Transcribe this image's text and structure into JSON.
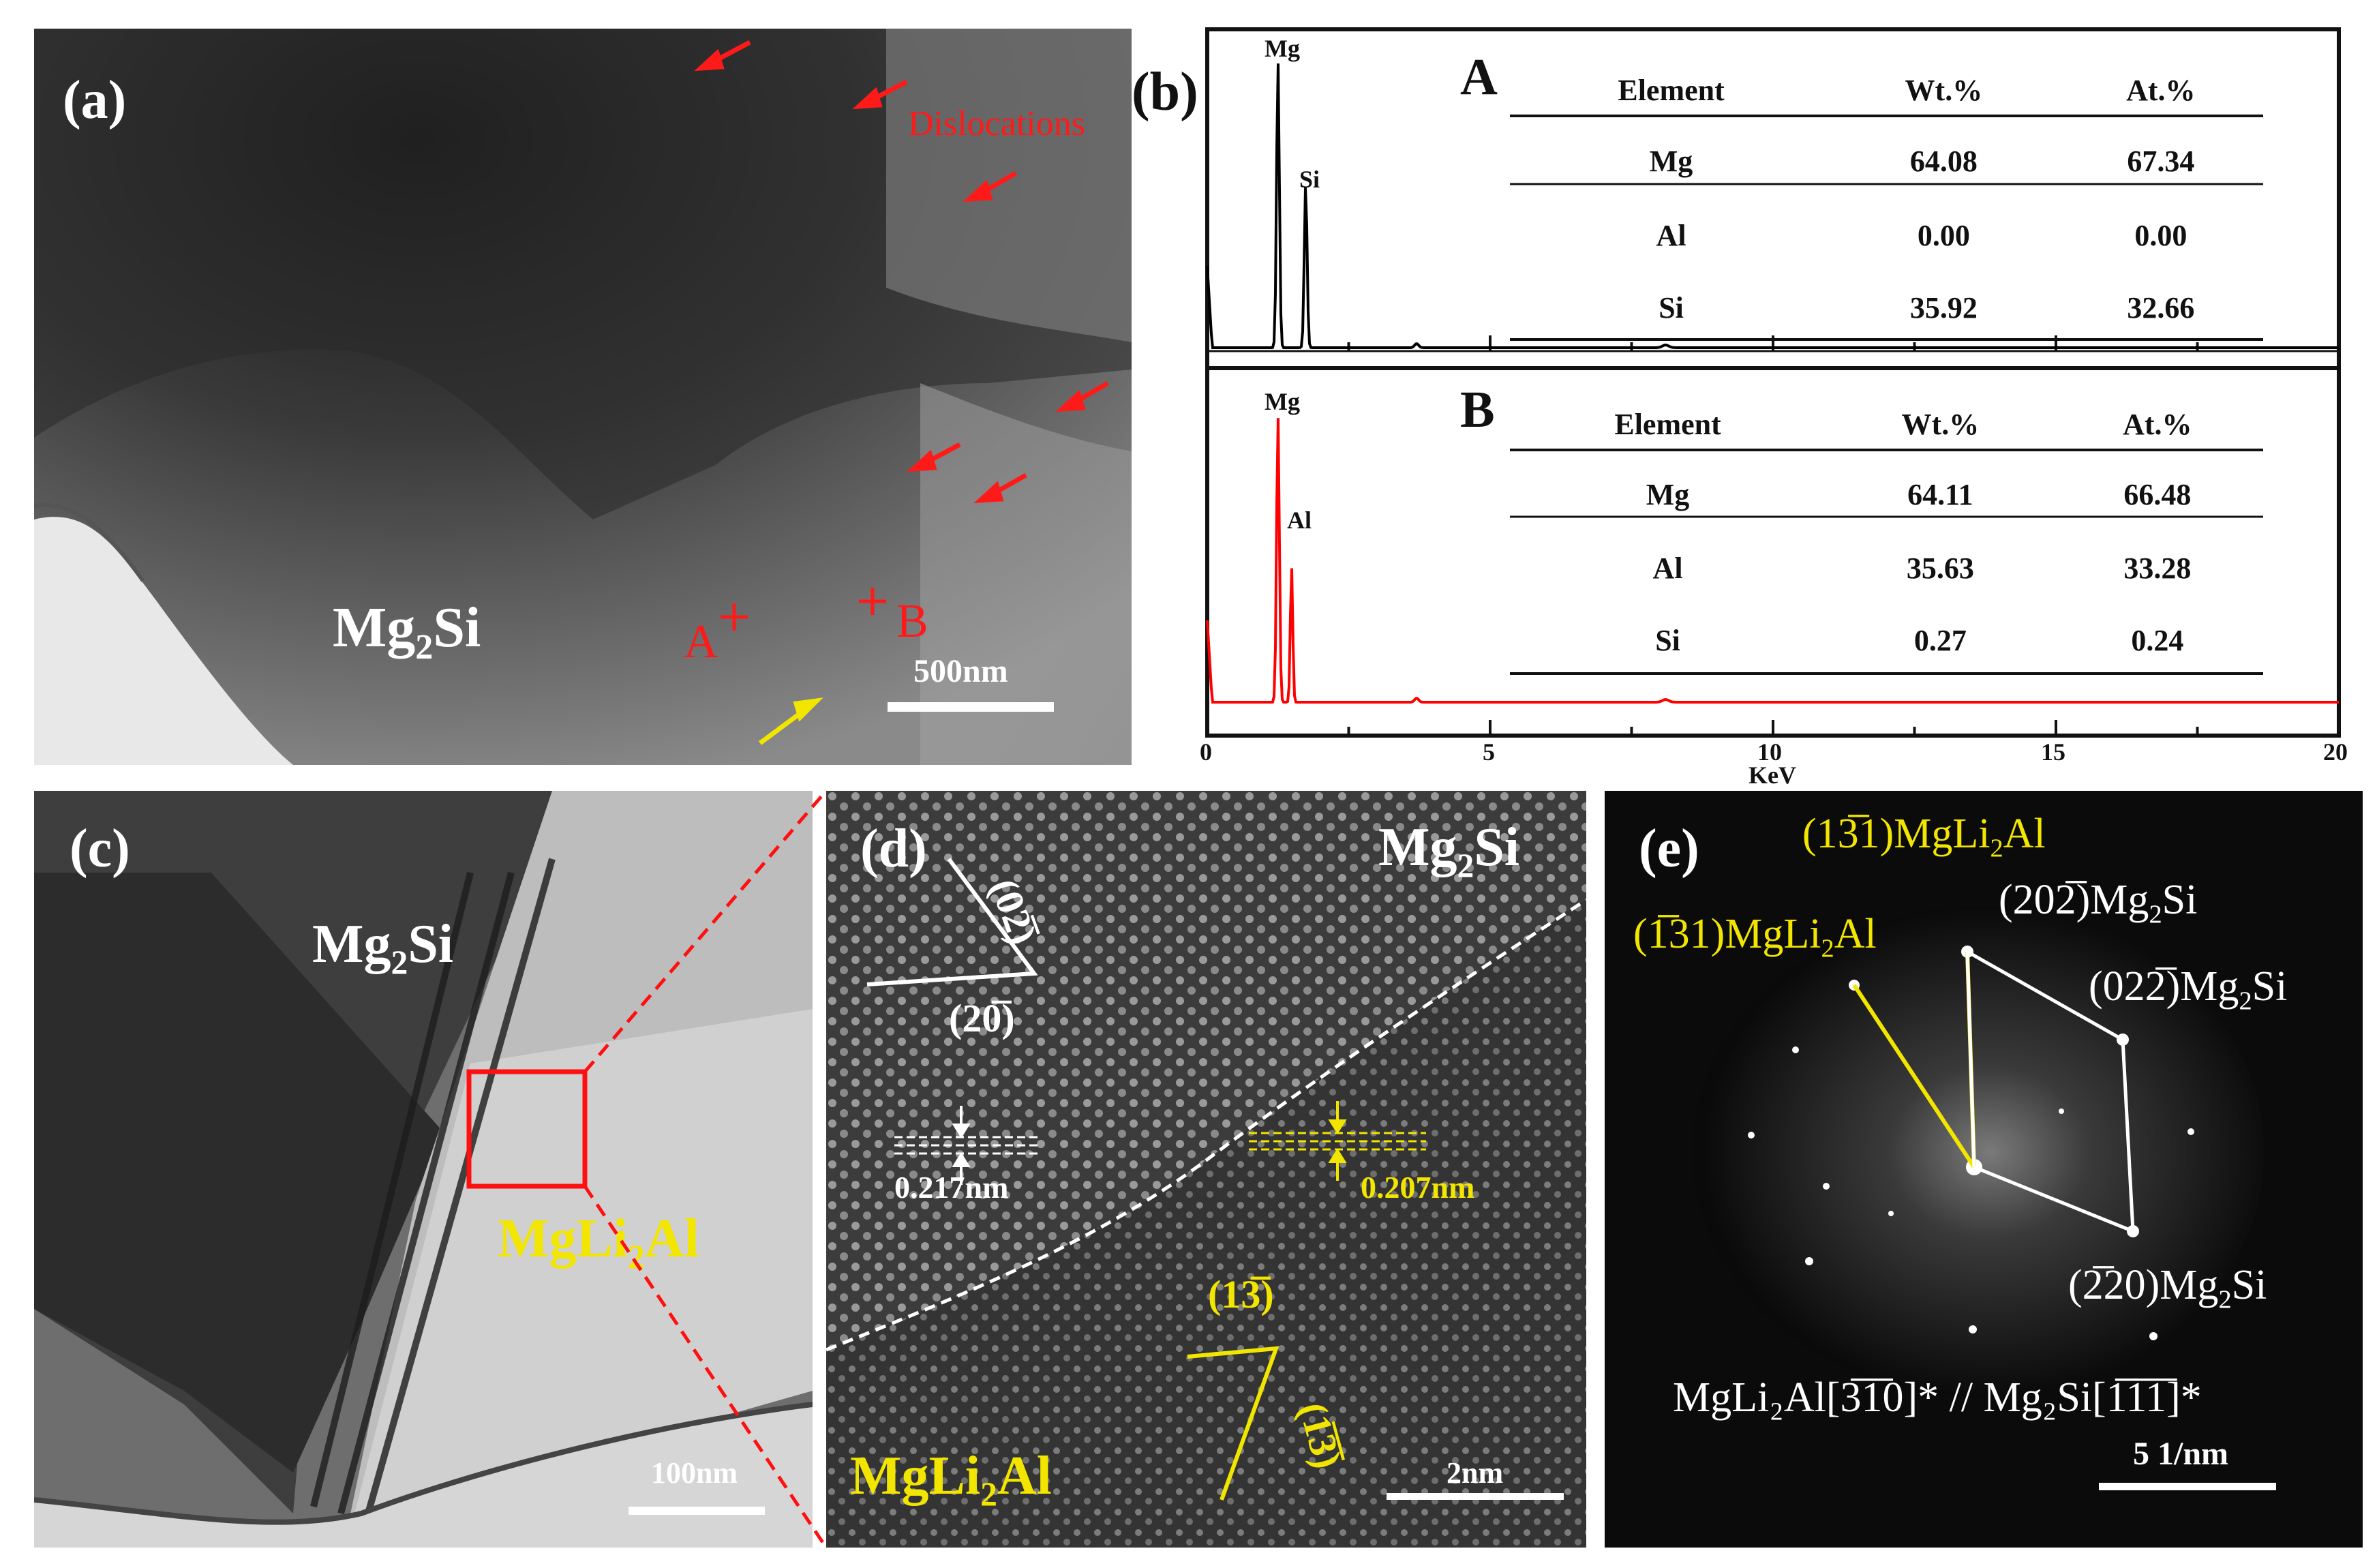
{
  "panel_a": {
    "label": "(a)",
    "annotation": "Dislocations",
    "phase": {
      "text": "Mg",
      "sub": "2",
      "tail": "Si"
    },
    "point_a": "A",
    "point_b": "B",
    "scale": "500nm"
  },
  "panel_b": {
    "label": "(b)",
    "spectrum_a": {
      "tag": "A",
      "peak1": "Mg",
      "peak2": "Si",
      "headers": [
        "Element",
        "Wt.%",
        "At.%"
      ],
      "rows": [
        {
          "el": "Mg",
          "wt": "64.08",
          "at": "67.34"
        },
        {
          "el": "Al",
          "wt": "0.00",
          "at": "0.00"
        },
        {
          "el": "Si",
          "wt": "35.92",
          "at": "32.66"
        }
      ]
    },
    "spectrum_b": {
      "tag": "B",
      "peak1": "Mg",
      "peak2": "Al",
      "headers": [
        "Element",
        "Wt.%",
        "At.%"
      ],
      "rows": [
        {
          "el": "Mg",
          "wt": "64.11",
          "at": "66.48"
        },
        {
          "el": "Al",
          "wt": "35.63",
          "at": "33.28"
        },
        {
          "el": "Si",
          "wt": "0.27",
          "at": "0.24"
        }
      ]
    },
    "x_ticks": [
      "0",
      "5",
      "10",
      "15",
      "20"
    ],
    "x_label": "KeV",
    "colors": {
      "spectrum_a": "#000000",
      "spectrum_b": "#ff0000"
    }
  },
  "chart_data": {
    "type": "line",
    "x_range": [
      0,
      20
    ],
    "xlabel": "KeV",
    "series": [
      {
        "name": "A",
        "peaks": [
          {
            "label": "Mg",
            "x": 1.25
          },
          {
            "label": "Si",
            "x": 1.74
          }
        ]
      },
      {
        "name": "B",
        "peaks": [
          {
            "label": "Mg",
            "x": 1.25
          },
          {
            "label": "Al",
            "x": 1.49
          }
        ]
      }
    ]
  },
  "panel_c": {
    "label": "(c)",
    "phase1": {
      "text": "Mg",
      "sub": "2",
      "tail": "Si"
    },
    "phase2": {
      "text": "MgLi",
      "sub": "2",
      "tail": "Al"
    },
    "scale": "100nm"
  },
  "panel_d": {
    "label": "(d)",
    "phase_top": {
      "text": "Mg",
      "sub": "2",
      "tail": "Si"
    },
    "phase_bottom": {
      "text": "MgLi",
      "sub": "2",
      "tail": "Al"
    },
    "plane1": "(02̅)",
    "plane2": "(20̅)",
    "plane3": "(13̅̅)",
    "plane4": "(1̅3̅̅)",
    "d_spacing_1": "0.217nm",
    "d_spacing_2": "0.207nm",
    "scale": "2nm"
  },
  "panel_e": {
    "label": "(e)",
    "spot1": {
      "hkl": "(13̅1)",
      "phase": "MgLi",
      "sub": "2",
      "tail": "Al"
    },
    "spot2": {
      "hkl": "(1̅31)",
      "phase": "MgLi",
      "sub": "2",
      "tail": "Al"
    },
    "spot3": {
      "hkl": "(202̅)",
      "phase": "Mg",
      "sub": "2",
      "tail": "Si"
    },
    "spot4": {
      "hkl": "(022̅)",
      "phase": "Mg",
      "sub": "2",
      "tail": "Si"
    },
    "spot5": {
      "hkl": "(2̅20)",
      "phase": "Mg",
      "sub": "2",
      "tail": "Si"
    },
    "orientation": "MgLi₂Al[3̅1̅0]* // Mg₂Si[1̅1̅1̅]*",
    "scale": "5 1/nm"
  }
}
